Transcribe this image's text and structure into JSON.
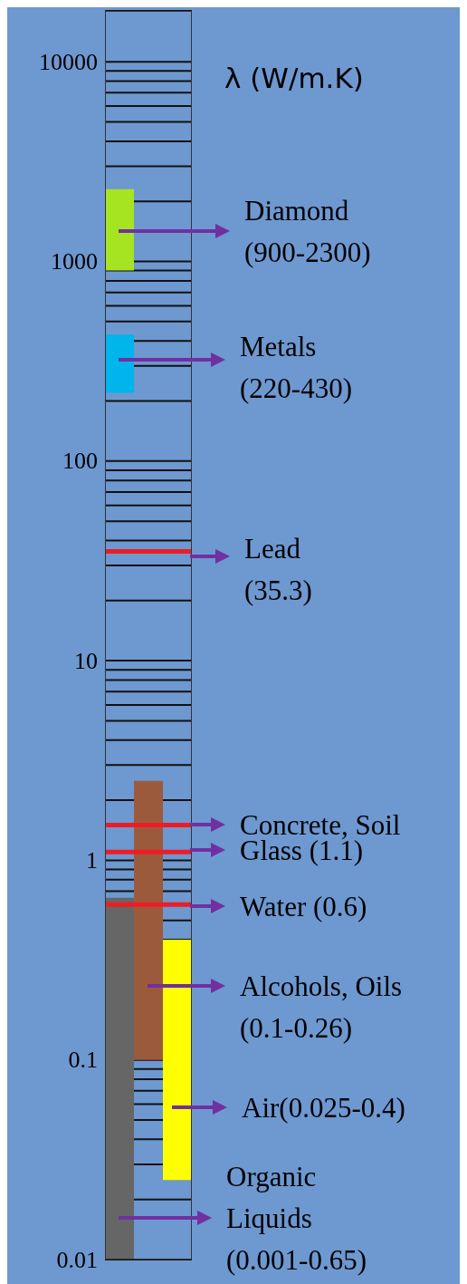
{
  "chart_data": {
    "type": "bar",
    "ylabel": "λ (W/m.K)",
    "log": true,
    "grid": "y",
    "categories": [
      null,
      null,
      null
    ],
    "ylim": [
      0.01,
      18000
    ],
    "yticks": [
      0.01,
      {
        "value": 0.02,
        "label": null
      },
      {
        "value": 0.03,
        "label": null
      },
      {
        "value": 0.04,
        "label": null
      },
      {
        "value": 0.05,
        "label": null
      },
      {
        "value": 0.06,
        "label": null
      },
      {
        "value": 0.07,
        "label": null
      },
      {
        "value": 0.08,
        "label": null
      },
      {
        "value": 0.09,
        "label": null
      },
      0.1,
      {
        "value": 0.4,
        "label": null
      },
      {
        "value": 0.5,
        "label": null
      },
      {
        "value": 0.6,
        "label": null
      },
      {
        "value": 0.7,
        "label": null
      },
      {
        "value": 0.8,
        "label": null
      },
      {
        "value": 0.9,
        "label": null
      },
      1,
      {
        "value": 2,
        "label": null
      },
      {
        "value": 3,
        "label": null
      },
      {
        "value": 4,
        "label": null
      },
      {
        "value": 5,
        "label": null
      },
      {
        "value": 6,
        "label": null
      },
      {
        "value": 7,
        "label": null
      },
      {
        "value": 8,
        "label": null
      },
      {
        "value": 9,
        "label": null
      },
      10,
      {
        "value": 20,
        "label": null
      },
      {
        "value": 30,
        "label": null
      },
      {
        "value": 40,
        "label": null
      },
      {
        "value": 50,
        "label": null
      },
      {
        "value": 60,
        "label": null
      },
      {
        "value": 70,
        "label": null
      },
      {
        "value": 80,
        "label": null
      },
      {
        "value": 90,
        "label": null
      },
      100,
      {
        "value": 200,
        "label": null
      },
      {
        "value": 300,
        "label": null
      },
      {
        "value": 400,
        "label": null
      },
      {
        "value": 500,
        "label": null
      },
      {
        "value": 600,
        "label": null
      },
      {
        "value": 700,
        "label": null
      },
      {
        "value": 800,
        "label": null
      },
      {
        "value": 900,
        "label": null
      },
      1000,
      {
        "value": 2000,
        "label": null
      },
      {
        "value": 3000,
        "label": null
      },
      {
        "value": 4000,
        "label": null
      },
      {
        "value": 5000,
        "label": null
      },
      {
        "value": 6000,
        "label": null
      },
      {
        "value": 7000,
        "label": null
      },
      {
        "value": 8000,
        "label": null
      },
      {
        "value": 9000,
        "label": null
      },
      10000
    ],
    "values": [
      0.64,
      2.4,
      0.375
    ],
    "base": [
      0.01,
      0.1,
      0.025
    ],
    "colors": [
      "#666666",
      "#9c5a3c",
      "#ffff00"
    ],
    "bands": [
      {
        "axis": "y",
        "from": 900,
        "to": 2300,
        "color": "#a6e422"
      },
      {
        "axis": "y",
        "from": 220,
        "to": 430,
        "color": "#00b4ec"
      }
    ],
    "ref_lines": [
      {
        "axis": "y",
        "value": 35.3,
        "color": "#ee1c25"
      },
      {
        "axis": "y",
        "value": 1.5,
        "color": "#ee1c25"
      },
      {
        "axis": "y",
        "value": 1.1,
        "color": "#ee1c25"
      },
      {
        "axis": "y",
        "value": 0.6,
        "color": "#ee1c25"
      }
    ],
    "annotations": [
      "Diamond\n(900-2300)",
      "Metals\n(220-430)",
      "Lead\n(35.3)",
      "Concrete, Soil",
      "Glass (1.1)",
      "Water (0.6)",
      "Alcohols, Oils\n(0.1-0.26)",
      "Air(0.025-0.4)",
      "Organic\nLiquids\n(0.001-0.65)"
    ]
  }
}
